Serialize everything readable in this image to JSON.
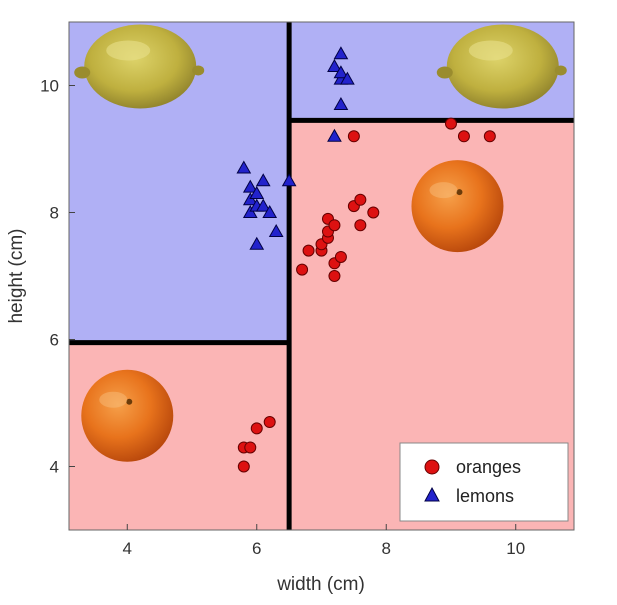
{
  "chart_data": {
    "type": "scatter",
    "xlabel": "width (cm)",
    "ylabel": "height (cm)",
    "xlim": [
      3.1,
      10.9
    ],
    "ylim": [
      3.0,
      11.0
    ],
    "xticks": [
      4,
      6,
      8,
      10
    ],
    "yticks": [
      4,
      6,
      8,
      10
    ],
    "x_tick_labels": [
      "4",
      "6",
      "8",
      "10"
    ],
    "y_tick_labels": [
      "4",
      "6",
      "8",
      "10"
    ],
    "grid": false,
    "legend_position": "bottom-right",
    "regions": [
      {
        "class": "lemons",
        "x": [
          3.1,
          6.5
        ],
        "y": [
          5.95,
          11.0
        ]
      },
      {
        "class": "oranges",
        "x": [
          3.1,
          6.5
        ],
        "y": [
          3.0,
          5.95
        ]
      },
      {
        "class": "lemons",
        "x": [
          6.5,
          10.9
        ],
        "y": [
          9.45,
          11.0
        ]
      },
      {
        "class": "oranges",
        "x": [
          6.5,
          10.9
        ],
        "y": [
          3.0,
          9.45
        ]
      }
    ],
    "boundaries": [
      {
        "x": [
          6.5,
          6.5
        ],
        "y": [
          3.0,
          11.0
        ]
      },
      {
        "x": [
          3.1,
          6.5
        ],
        "y": [
          5.95,
          5.95
        ]
      },
      {
        "x": [
          6.5,
          10.9
        ],
        "y": [
          9.45,
          9.45
        ]
      }
    ],
    "series": [
      {
        "name": "oranges",
        "marker": "circle",
        "color": "#dd1111",
        "points": [
          [
            5.8,
            4.0
          ],
          [
            5.8,
            4.3
          ],
          [
            5.9,
            4.3
          ],
          [
            6.0,
            4.6
          ],
          [
            6.2,
            4.7
          ],
          [
            6.7,
            7.1
          ],
          [
            6.8,
            7.4
          ],
          [
            7.0,
            7.4
          ],
          [
            7.0,
            7.5
          ],
          [
            7.1,
            7.6
          ],
          [
            7.1,
            7.7
          ],
          [
            7.1,
            7.9
          ],
          [
            7.2,
            7.8
          ],
          [
            7.2,
            7.2
          ],
          [
            7.2,
            7.0
          ],
          [
            7.3,
            7.3
          ],
          [
            7.5,
            8.1
          ],
          [
            7.6,
            8.2
          ],
          [
            7.6,
            7.8
          ],
          [
            7.8,
            8.0
          ],
          [
            7.5,
            9.2
          ],
          [
            9.0,
            9.4
          ],
          [
            9.2,
            9.2
          ],
          [
            9.6,
            9.2
          ]
        ]
      },
      {
        "name": "lemons",
        "marker": "triangle",
        "color": "#2222cc",
        "points": [
          [
            5.8,
            8.7
          ],
          [
            5.9,
            8.4
          ],
          [
            5.9,
            8.2
          ],
          [
            5.9,
            8.0
          ],
          [
            6.0,
            8.1
          ],
          [
            6.0,
            8.3
          ],
          [
            6.1,
            8.5
          ],
          [
            6.1,
            8.1
          ],
          [
            6.2,
            8.0
          ],
          [
            6.0,
            7.5
          ],
          [
            6.3,
            7.7
          ],
          [
            6.5,
            8.5
          ],
          [
            7.2,
            9.2
          ],
          [
            7.3,
            9.7
          ],
          [
            7.2,
            10.3
          ],
          [
            7.3,
            10.1
          ],
          [
            7.3,
            10.2
          ],
          [
            7.4,
            10.1
          ],
          [
            7.3,
            10.5
          ]
        ]
      }
    ]
  },
  "colors": {
    "lemon_region": "#b0b0f5",
    "orange_region": "#fbb5b5",
    "boundary": "#000000",
    "orange_marker": "#dd1111",
    "lemon_marker": "#2222cc"
  },
  "illustrations": [
    {
      "kind": "lemon-image",
      "at": [
        4.2,
        10.3
      ]
    },
    {
      "kind": "lemon-image",
      "at": [
        9.8,
        10.3
      ]
    },
    {
      "kind": "orange-image",
      "at": [
        9.1,
        8.1
      ]
    },
    {
      "kind": "orange-image",
      "at": [
        4.0,
        4.8
      ]
    }
  ]
}
